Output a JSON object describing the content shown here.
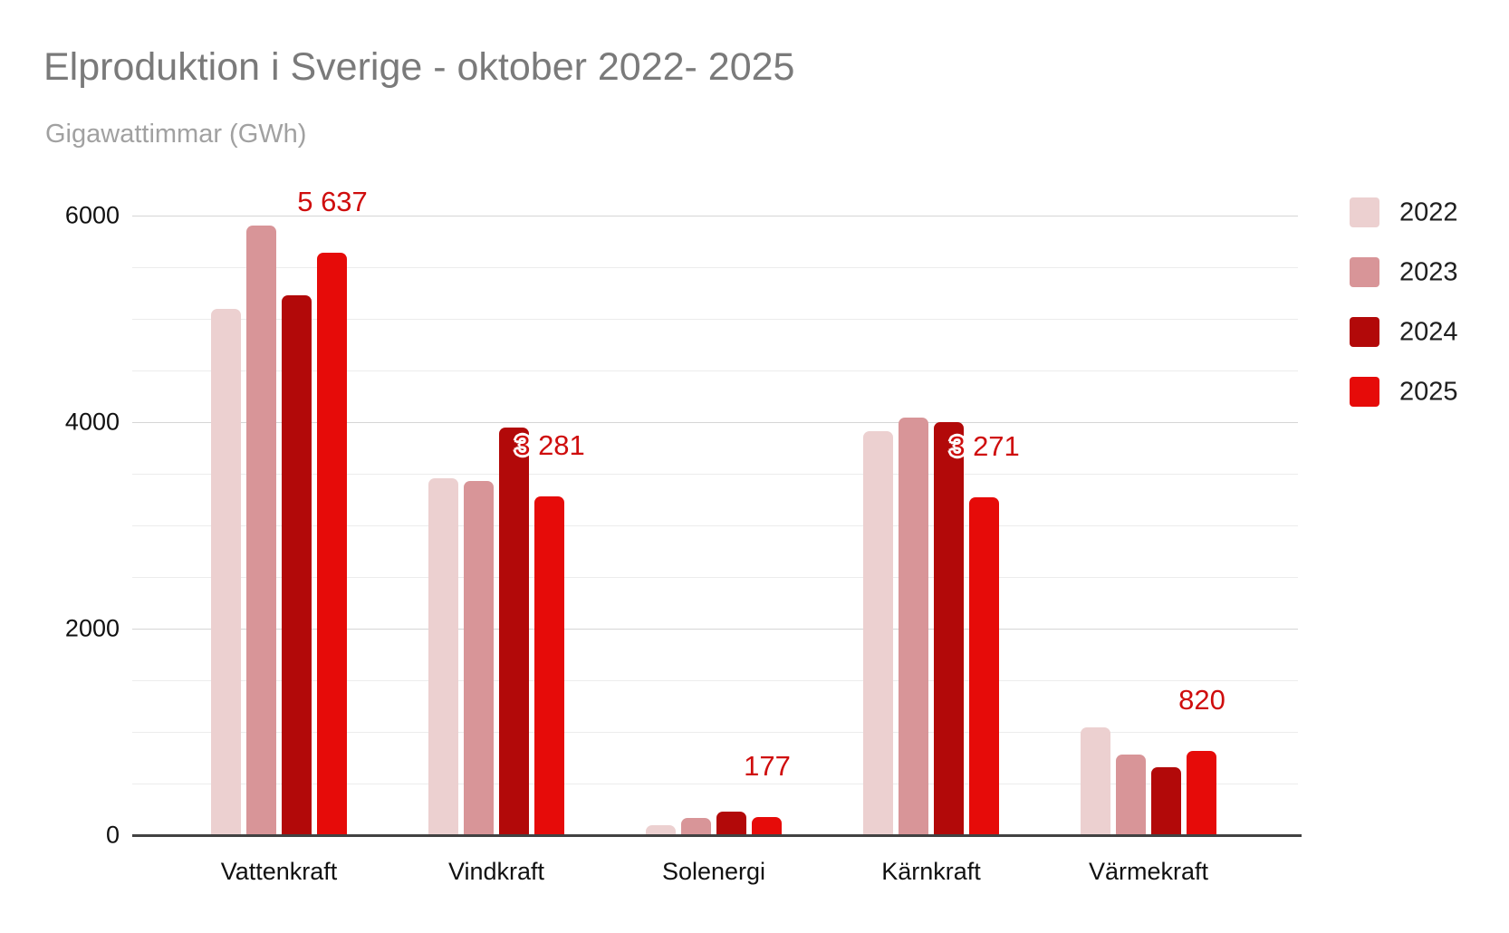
{
  "header": {
    "title": "Elproduktion i Sverige - oktober 2022- 2025",
    "subtitle": "Gigawattimmar (GWh)"
  },
  "chart_data": {
    "type": "bar",
    "title": "Elproduktion i Sverige - oktober 2022- 2025",
    "subtitle": "Gigawattimmar (GWh)",
    "ylabel": "Gigawattimmar (GWh)",
    "categories": [
      "Vattenkraft",
      "Vindkraft",
      "Solenergi",
      "Kärnkraft",
      "Värmekraft"
    ],
    "series": [
      {
        "name": "2022",
        "color": "#ecd0d0",
        "values": [
          5100,
          3460,
          100,
          3915,
          1040
        ]
      },
      {
        "name": "2023",
        "color": "#d89598",
        "values": [
          5905,
          3430,
          170,
          4045,
          780
        ]
      },
      {
        "name": "2024",
        "color": "#b20909",
        "values": [
          5225,
          3950,
          230,
          4000,
          660
        ]
      },
      {
        "name": "2025",
        "color": "#e60b09",
        "values": [
          5637,
          3281,
          177,
          3271,
          820
        ]
      }
    ],
    "data_labels": {
      "series": "2025",
      "values": [
        "5 637",
        "3 281",
        "177",
        "3 271",
        "820"
      ],
      "color": "#cf0d0d"
    },
    "ylim": [
      0,
      6000
    ],
    "y_ticks": [
      0,
      2000,
      4000,
      6000
    ],
    "y_minor_step": 500,
    "grid": "on",
    "legend_position": "right"
  },
  "colors": {
    "title": "#7a7a7a",
    "subtitle": "#a1a1a1",
    "axis_text": "#111111",
    "gridline_minor": "#ececec",
    "gridline_major": "#d6d6d6",
    "axis_line": "#424242",
    "background": "#ffffff"
  }
}
